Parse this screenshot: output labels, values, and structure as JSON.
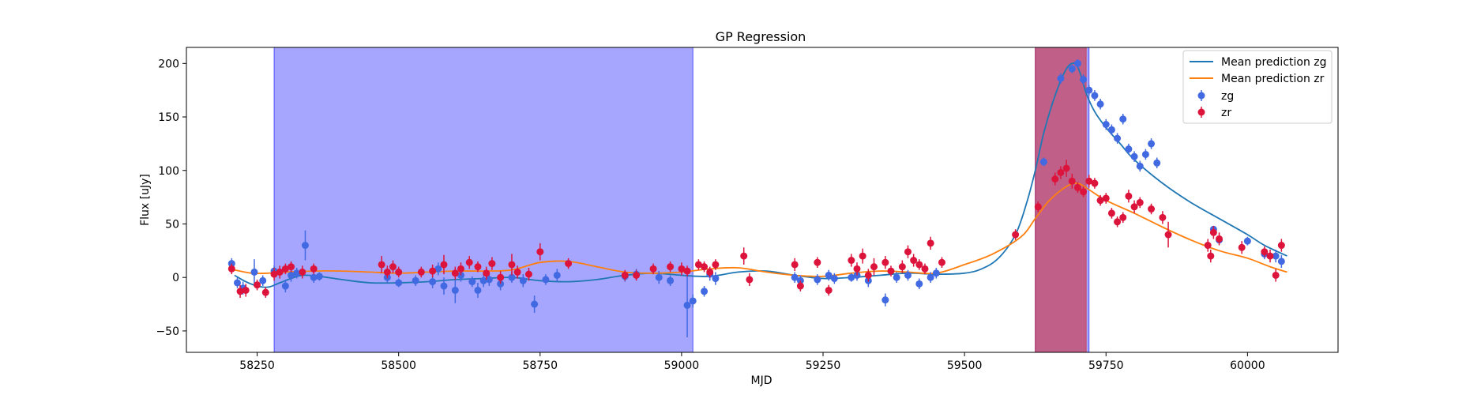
{
  "chart_data": {
    "type": "scatter",
    "title": "GP Regression",
    "xlabel": "MJD",
    "ylabel": "Flux [uJy]",
    "xlim": [
      58125,
      60160
    ],
    "ylim": [
      -70,
      215
    ],
    "xticks": [
      58250,
      58500,
      58750,
      59000,
      59250,
      59500,
      59750,
      60000
    ],
    "yticks": [
      -50,
      0,
      50,
      100,
      150,
      200
    ],
    "grid": false,
    "legend_position": "top-right",
    "legend": [
      "Mean prediction zg",
      "Mean prediction zr",
      "zg",
      "zr"
    ],
    "colors": {
      "zg": "#4169e1",
      "zr": "#dc143c",
      "zg_line": "#1f77b4",
      "zr_line": "#ff7f0e",
      "span_blue": "#0000ff",
      "span_red": "#d62728"
    },
    "shaded_regions": [
      {
        "x": [
          58280,
          59020
        ],
        "color": "#0000ff",
        "opacity": 0.35
      },
      {
        "x": [
          59625,
          59720
        ],
        "color": "#0000ff",
        "opacity": 0.35
      },
      {
        "x": [
          59625,
          59715
        ],
        "color": "#d62728",
        "opacity": 0.55
      }
    ],
    "lines": [
      {
        "name": "Mean prediction zg",
        "color": "#1f77b4",
        "x": [
          58210,
          58230,
          58250,
          58270,
          58290,
          58310,
          58330,
          58360,
          58400,
          58450,
          58500,
          58550,
          58600,
          58650,
          58700,
          58750,
          58800,
          58850,
          58900,
          58950,
          59000,
          59050,
          59100,
          59150,
          59200,
          59250,
          59300,
          59350,
          59400,
          59450,
          59500,
          59530,
          59560,
          59590,
          59610,
          59625,
          59640,
          59660,
          59680,
          59695,
          59705,
          59715,
          59730,
          59750,
          59775,
          59800,
          59850,
          59900,
          59950,
          60000,
          60030,
          60070
        ],
        "y": [
          2,
          -4,
          -8,
          -9,
          -5,
          -1,
          2,
          1,
          -2,
          -5,
          -5,
          -4,
          -2,
          -1,
          0,
          -3,
          -4,
          -2,
          2,
          4,
          2,
          1,
          5,
          6,
          2,
          -1,
          0,
          2,
          4,
          3,
          4,
          8,
          18,
          40,
          70,
          100,
          135,
          170,
          195,
          200,
          190,
          172,
          155,
          140,
          125,
          110,
          88,
          70,
          55,
          40,
          30,
          20
        ]
      },
      {
        "name": "Mean prediction zr",
        "color": "#ff7f0e",
        "x": [
          58210,
          58240,
          58270,
          58300,
          58350,
          58400,
          58450,
          58500,
          58550,
          58600,
          58650,
          58700,
          58750,
          58800,
          58850,
          58900,
          58950,
          59000,
          59050,
          59100,
          59150,
          59200,
          59250,
          59300,
          59350,
          59400,
          59450,
          59500,
          59550,
          59600,
          59625,
          59650,
          59680,
          59700,
          59720,
          59750,
          59800,
          59850,
          59900,
          59950,
          60000,
          60040,
          60070
        ],
        "y": [
          7,
          4,
          4,
          5,
          6,
          6,
          5,
          4,
          5,
          6,
          6,
          7,
          14,
          15,
          10,
          5,
          4,
          5,
          8,
          9,
          5,
          2,
          1,
          4,
          6,
          5,
          4,
          12,
          22,
          38,
          55,
          72,
          85,
          88,
          82,
          72,
          60,
          47,
          35,
          25,
          18,
          10,
          5
        ]
      }
    ],
    "series": [
      {
        "name": "zg",
        "color": "#4169e1",
        "x": [
          58205,
          58215,
          58225,
          58245,
          58260,
          58280,
          58300,
          58310,
          58320,
          58335,
          58350,
          58360,
          58480,
          58500,
          58530,
          58560,
          58570,
          58580,
          58600,
          58610,
          58630,
          58640,
          58650,
          58660,
          58680,
          58700,
          58720,
          58740,
          58760,
          58780,
          58900,
          58920,
          58960,
          58980,
          59010,
          59020,
          59040,
          59050,
          59060,
          59200,
          59210,
          59240,
          59260,
          59270,
          59300,
          59310,
          59330,
          59360,
          59380,
          59400,
          59420,
          59440,
          59450,
          59640,
          59670,
          59690,
          59700,
          59710,
          59720,
          59730,
          59740,
          59750,
          59760,
          59770,
          59780,
          59790,
          59800,
          59810,
          59820,
          59830,
          59840,
          59940,
          59950,
          60000,
          60030,
          60050,
          60060
        ],
        "y": [
          13,
          -5,
          -10,
          5,
          -3,
          6,
          -8,
          2,
          4,
          30,
          0,
          1,
          0,
          -5,
          -3,
          -4,
          8,
          -8,
          -12,
          2,
          -4,
          -12,
          -3,
          -2,
          -6,
          0,
          -3,
          -25,
          -2,
          2,
          1,
          3,
          0,
          -3,
          -26,
          -22,
          -13,
          3,
          -1,
          0,
          -3,
          -2,
          2,
          -1,
          0,
          2,
          -3,
          -21,
          0,
          2,
          -6,
          0,
          4,
          108,
          186,
          195,
          200,
          185,
          175,
          170,
          162,
          143,
          138,
          130,
          148,
          120,
          113,
          104,
          115,
          125,
          107,
          45,
          35,
          34,
          22,
          20,
          15
        ],
        "err": [
          5,
          5,
          6,
          12,
          5,
          5,
          6,
          6,
          5,
          14,
          5,
          4,
          5,
          4,
          5,
          6,
          6,
          8,
          12,
          6,
          5,
          7,
          6,
          6,
          6,
          5,
          6,
          8,
          5,
          6,
          5,
          5,
          6,
          5,
          30,
          6,
          5,
          6,
          6,
          5,
          5,
          5,
          5,
          5,
          4,
          5,
          6,
          6,
          5,
          5,
          5,
          5,
          5,
          4,
          5,
          4,
          4,
          5,
          5,
          5,
          5,
          5,
          5,
          5,
          5,
          5,
          5,
          5,
          5,
          5,
          5,
          3,
          3,
          4,
          5,
          6,
          6
        ]
      },
      {
        "name": "zr",
        "color": "#dc143c",
        "x": [
          58205,
          58220,
          58230,
          58250,
          58265,
          58280,
          58290,
          58300,
          58310,
          58330,
          58350,
          58470,
          58480,
          58490,
          58500,
          58540,
          58560,
          58580,
          58600,
          58610,
          58625,
          58640,
          58655,
          58665,
          58680,
          58700,
          58710,
          58730,
          58750,
          58800,
          58900,
          58920,
          58950,
          58980,
          59000,
          59010,
          59030,
          59040,
          59050,
          59060,
          59110,
          59120,
          59200,
          59210,
          59240,
          59260,
          59300,
          59310,
          59320,
          59330,
          59340,
          59360,
          59370,
          59390,
          59400,
          59410,
          59420,
          59430,
          59440,
          59460,
          59590,
          59630,
          59660,
          59670,
          59680,
          59690,
          59700,
          59710,
          59720,
          59730,
          59740,
          59750,
          59760,
          59770,
          59780,
          59790,
          59800,
          59810,
          59830,
          59850,
          59860,
          59930,
          59935,
          59940,
          59950,
          59990,
          60030,
          60040,
          60050,
          60060
        ],
        "y": [
          8,
          -13,
          -12,
          -7,
          -14,
          3,
          5,
          8,
          10,
          5,
          8,
          12,
          5,
          10,
          5,
          5,
          6,
          12,
          4,
          8,
          14,
          10,
          4,
          13,
          0,
          12,
          5,
          3,
          24,
          13,
          2,
          2,
          8,
          10,
          8,
          6,
          12,
          10,
          5,
          12,
          20,
          -2,
          12,
          -8,
          14,
          -12,
          16,
          8,
          20,
          2,
          10,
          14,
          6,
          10,
          24,
          16,
          12,
          8,
          32,
          14,
          40,
          66,
          92,
          98,
          102,
          90,
          84,
          80,
          90,
          88,
          72,
          74,
          60,
          52,
          56,
          76,
          66,
          70,
          64,
          56,
          40,
          30,
          20,
          42,
          36,
          28,
          24,
          20,
          2,
          30
        ],
        "err": [
          5,
          6,
          6,
          5,
          5,
          6,
          6,
          5,
          5,
          6,
          5,
          8,
          6,
          6,
          5,
          5,
          6,
          9,
          6,
          6,
          6,
          5,
          6,
          6,
          6,
          10,
          6,
          6,
          8,
          5,
          5,
          5,
          5,
          5,
          6,
          5,
          5,
          5,
          5,
          5,
          8,
          6,
          6,
          5,
          5,
          5,
          6,
          6,
          7,
          6,
          8,
          6,
          5,
          6,
          6,
          6,
          5,
          5,
          6,
          5,
          5,
          5,
          6,
          6,
          8,
          7,
          5,
          5,
          6,
          5,
          5,
          5,
          5,
          5,
          5,
          6,
          6,
          5,
          5,
          6,
          12,
          6,
          6,
          6,
          6,
          6,
          5,
          6,
          6,
          6
        ]
      }
    ]
  }
}
